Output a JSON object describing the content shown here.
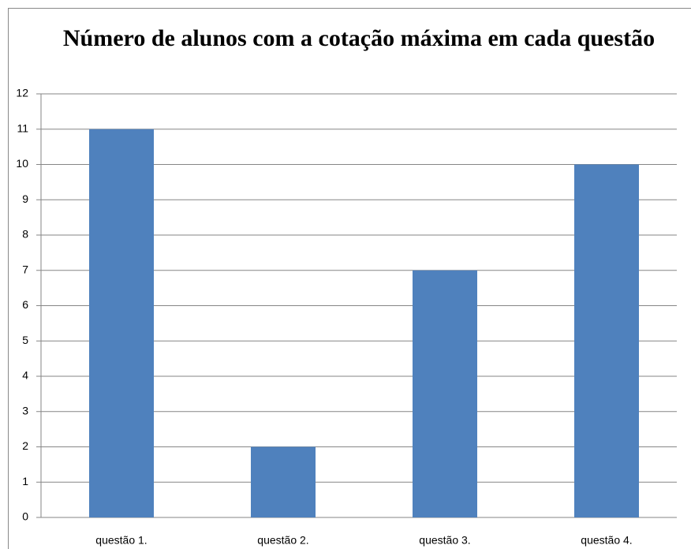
{
  "chart_data": {
    "type": "bar",
    "title": "Número de alunos com a cotação máxima em cada questão",
    "categories": [
      "questão 1.",
      "questão 2.",
      "questão 3.",
      "questão 4."
    ],
    "values": [
      11,
      2,
      7,
      10
    ],
    "color": "#4f81bd",
    "ylim": [
      0,
      12
    ],
    "yticks": [
      0,
      1,
      2,
      3,
      4,
      5,
      6,
      7,
      8,
      9,
      10,
      11,
      12
    ],
    "grid": true
  }
}
